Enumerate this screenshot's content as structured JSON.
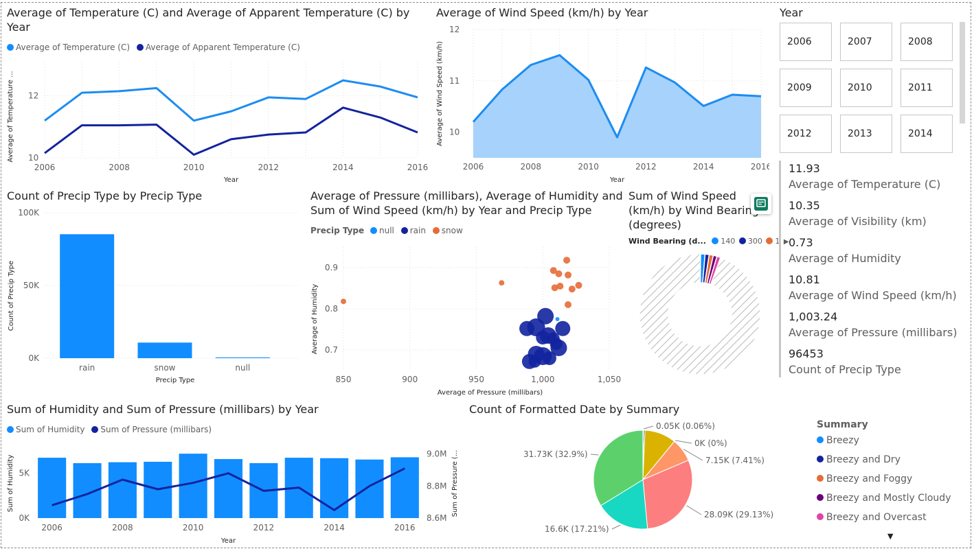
{
  "colors": {
    "light_blue": "#118DFF",
    "dark_blue": "#12239E",
    "orange": "#E66C37",
    "purple": "#6B007B",
    "pink": "#E044A7",
    "area_fill": "#A6D2FB",
    "line_light": "#1C8CF0",
    "grid": "#E1DFDD",
    "tick": "#605E5C"
  },
  "chart_data": [
    {
      "id": "temp-line",
      "type": "line",
      "title": "Average of Temperature (C) and Average of Apparent Temperature (C) by Year",
      "xlabel": "Year",
      "ylabel": "Average of Temperature ...",
      "x": [
        2006,
        2007,
        2008,
        2009,
        2010,
        2011,
        2012,
        2013,
        2014,
        2015,
        2016
      ],
      "x_ticks": [
        "2006",
        "2008",
        "2010",
        "2012",
        "2014",
        "2016"
      ],
      "y_ticks": [
        "10",
        "12"
      ],
      "ylim": [
        10,
        13.1
      ],
      "series": [
        {
          "name": "Average of Temperature (C)",
          "color": "#118DFF",
          "values": [
            11.2,
            12.1,
            12.15,
            12.25,
            11.2,
            11.5,
            11.95,
            11.9,
            12.5,
            12.3,
            11.95
          ]
        },
        {
          "name": "Average of Apparent Temperature (C)",
          "color": "#12239E",
          "values": [
            10.15,
            11.05,
            11.05,
            11.07,
            10.1,
            10.6,
            10.75,
            10.82,
            11.62,
            11.3,
            10.82
          ]
        }
      ],
      "legend": "top-left"
    },
    {
      "id": "wind-area",
      "type": "area",
      "title": "Average of Wind Speed (km/h) by Year",
      "xlabel": "Year",
      "ylabel": "Average of Wind Speed (km/h)",
      "x": [
        2006,
        2007,
        2008,
        2009,
        2010,
        2011,
        2012,
        2013,
        2014,
        2015,
        2016
      ],
      "x_ticks": [
        "2006",
        "2008",
        "2010",
        "2012",
        "2014",
        "2016"
      ],
      "y_ticks": [
        "10",
        "11",
        "12"
      ],
      "ylim": [
        9.5,
        12
      ],
      "values": [
        10.2,
        10.83,
        11.31,
        11.5,
        11.02,
        9.9,
        11.26,
        10.97,
        10.51,
        10.73,
        10.7
      ]
    },
    {
      "id": "precip-bar",
      "type": "bar",
      "title": "Count of Precip Type by Precip Type",
      "xlabel": "Precip Type",
      "ylabel": "Count of Precip Type",
      "categories": [
        "rain",
        "snow",
        "null"
      ],
      "values": [
        85224,
        10712,
        517
      ],
      "y_ticks": [
        "0K",
        "50K",
        "100K"
      ],
      "ylim": [
        0,
        100000
      ]
    },
    {
      "id": "pressure-scatter",
      "type": "scatter",
      "title": "Average of Pressure (millibars), Average of Humidity and Sum of Wind Speed (km/h) by Year and Precip Type",
      "xlabel": "Average of Pressure (millibars)",
      "ylabel": "Average of Humidity",
      "legend_title": "Precip Type",
      "x_ticks": [
        "850",
        "900",
        "950",
        "1,000",
        "1,050"
      ],
      "y_ticks": [
        "0.7",
        "0.8",
        "0.9"
      ],
      "xlim": [
        850,
        1050
      ],
      "ylim": [
        0.65,
        0.95
      ],
      "series": [
        {
          "name": "null",
          "color": "#118DFF",
          "points": [
            [
              1011,
              0.775,
              3
            ],
            [
              1004,
              0.672,
              3
            ]
          ]
        },
        {
          "name": "rain",
          "color": "#12239E",
          "points": [
            [
              1002,
              0.782,
              12
            ],
            [
              995,
              0.755,
              13
            ],
            [
              988,
              0.752,
              11
            ],
            [
              1015,
              0.752,
              11
            ],
            [
              1004,
              0.735,
              12
            ],
            [
              1000,
              0.73,
              10
            ],
            [
              1010,
              0.715,
              9
            ],
            [
              1012,
              0.705,
              12
            ],
            [
              995,
              0.69,
              12
            ],
            [
              1000,
              0.685,
              13
            ],
            [
              990,
              0.672,
              11
            ],
            [
              1005,
              0.68,
              10
            ],
            [
              1008,
              0.728,
              9
            ],
            [
              994,
              0.672,
              9
            ]
          ]
        },
        {
          "name": "snow",
          "color": "#E66C37",
          "points": [
            [
              1018,
              0.918,
              5
            ],
            [
              1008,
              0.893,
              5
            ],
            [
              1012,
              0.885,
              5
            ],
            [
              1019,
              0.882,
              5
            ],
            [
              969,
              0.863,
              4
            ],
            [
              1013,
              0.855,
              5
            ],
            [
              1009,
              0.851,
              5
            ],
            [
              1022,
              0.848,
              5
            ],
            [
              1027,
              0.857,
              5
            ],
            [
              1019,
              0.81,
              5
            ],
            [
              850,
              0.818,
              4
            ]
          ]
        }
      ]
    },
    {
      "id": "bearing-donut",
      "type": "pie",
      "title": "Sum of Wind Speed (km/h) by Wind Bearing (degrees)",
      "legend_title": "Wind Bearing (d...",
      "legend_items": [
        {
          "name": "140",
          "color": "#118DFF"
        },
        {
          "name": "300",
          "color": "#12239E"
        },
        {
          "name": "1",
          "color": "#E66C37"
        }
      ],
      "slices": [
        {
          "name": "140",
          "value": 1.2,
          "color": "#118DFF"
        },
        {
          "name": "300",
          "value": 1.1,
          "color": "#12239E"
        },
        {
          "name": "1",
          "value": 1.1,
          "color": "#E66C37"
        },
        {
          "name": "",
          "value": 1.0,
          "color": "#6B007B"
        },
        {
          "name": "",
          "value": 1.0,
          "color": "#E044A7"
        },
        {
          "name": "",
          "value": 94.6,
          "color": "hatched"
        }
      ]
    },
    {
      "id": "humidity-combo",
      "type": "bar",
      "title": "Sum of Humidity and Sum of Pressure (millibars) by Year",
      "xlabel": "Year",
      "ylabel": "Sum of Humidity",
      "y2label": "Sum of Pressure (...",
      "x": [
        2006,
        2007,
        2008,
        2009,
        2010,
        2011,
        2012,
        2013,
        2014,
        2015,
        2016
      ],
      "x_ticks": [
        "2006",
        "2008",
        "2010",
        "2012",
        "2014",
        "2016"
      ],
      "y_ticks": [
        "0K",
        "5K"
      ],
      "y2_ticks": [
        "8.6M",
        "8.8M",
        "9.0M"
      ],
      "ylim": [
        0,
        8000
      ],
      "y2lim": [
        8.6,
        9.05
      ],
      "series": [
        {
          "name": "Sum of Humidity",
          "color": "#118DFF",
          "kind": "bar",
          "values": [
            6700,
            6100,
            6200,
            6250,
            7150,
            6550,
            6100,
            6700,
            6650,
            6500,
            6750
          ]
        },
        {
          "name": "Sum of Pressure (millibars)",
          "color": "#12239E",
          "kind": "line",
          "values": [
            8.68,
            8.75,
            8.84,
            8.78,
            8.82,
            8.88,
            8.77,
            8.79,
            8.65,
            8.8,
            8.91
          ]
        }
      ]
    },
    {
      "id": "summary-pie",
      "type": "pie",
      "title": "Count of Formatted Date by Summary",
      "slices": [
        {
          "value": 0.2,
          "color": "#E044A7"
        },
        {
          "value": 0.06,
          "color": "#6B007B",
          "label": "0.05K (0.06%)"
        },
        {
          "value": 0.4,
          "color": "#12239E"
        },
        {
          "value": 10.0,
          "color": "#D9B300"
        },
        {
          "value": 0.01,
          "color": "#E66C37",
          "label": "0K (0%)"
        },
        {
          "value": 7.41,
          "color": "#FE9666",
          "label": "7.15K (7.41%)"
        },
        {
          "value": 29.13,
          "color": "#FD7E7E",
          "label": "28.09K (29.13%)"
        },
        {
          "value": 17.21,
          "color": "#18D8C4",
          "label": "16.6K (17.21%)"
        },
        {
          "value": 32.9,
          "color": "#5CD16B",
          "label": "31.73K (32.9%)"
        }
      ]
    }
  ],
  "slicer": {
    "title": "Year",
    "items": [
      "2006",
      "2007",
      "2008",
      "2009",
      "2010",
      "2011",
      "2012",
      "2013",
      "2014"
    ]
  },
  "kpis": [
    {
      "value": "11.93",
      "label": "Average of Temperature (C)"
    },
    {
      "value": "10.35",
      "label": "Average of Visibility (km)"
    },
    {
      "value": "0.73",
      "label": "Average of Humidity"
    },
    {
      "value": "10.81",
      "label": "Average of Wind Speed (km/h)"
    },
    {
      "value": "1,003.24",
      "label": "Average of Pressure (millibars)"
    },
    {
      "value": "96453",
      "label": "Count of Precip Type"
    }
  ],
  "summary_legend": {
    "title": "Summary",
    "items": [
      {
        "name": "Breezy",
        "color": "#118DFF"
      },
      {
        "name": "Breezy and Dry",
        "color": "#12239E"
      },
      {
        "name": "Breezy and Foggy",
        "color": "#E66C37"
      },
      {
        "name": "Breezy and Mostly Cloudy",
        "color": "#6B007B"
      },
      {
        "name": "Breezy and Overcast",
        "color": "#E044A7"
      }
    ]
  },
  "icons": {
    "smart_narrative": "smart-narrative-icon",
    "legend_next": "legend-next-arrow-icon",
    "legend_down": "legend-scroll-down-icon"
  }
}
